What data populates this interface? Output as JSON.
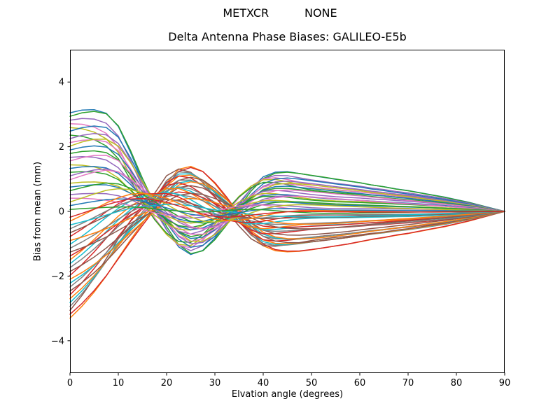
{
  "figure": {
    "suptitle": "METXCR          NONE",
    "background": "#ffffff",
    "text_color": "#000000"
  },
  "chart_data": {
    "type": "line",
    "suptitle": "METXCR          NONE",
    "title": "Delta Antenna Phase Biases: GALILEO-E5b",
    "xlabel": "Elvation angle (degrees)",
    "ylabel": "Bias from mean (mm)",
    "xlim": [
      0,
      90
    ],
    "ylim": [
      -5,
      5
    ],
    "xticks": [
      0,
      10,
      20,
      30,
      40,
      50,
      60,
      70,
      80,
      90
    ],
    "xtick_labels": [
      "0",
      "10",
      "20",
      "30",
      "40",
      "50",
      "60",
      "70",
      "80",
      "90"
    ],
    "yticks": [
      -4,
      -2,
      0,
      2,
      4
    ],
    "ytick_labels": [
      "−4",
      "−2",
      "0",
      "2",
      "4"
    ],
    "grid": false,
    "legend": false,
    "n_series": 54,
    "line_width": 1.5,
    "palette": [
      "#1f77b4",
      "#ff7f0e",
      "#2ca02c",
      "#d62728",
      "#9467bd",
      "#8c564b",
      "#e377c2",
      "#7f7f7f",
      "#bcbd22",
      "#17becf"
    ],
    "x": [
      0,
      2.5,
      5,
      7.5,
      10,
      12.5,
      15,
      17.5,
      20,
      22.5,
      25,
      27.5,
      30,
      32.5,
      35,
      37.5,
      40,
      42.5,
      45,
      47.5,
      50,
      52.5,
      55,
      57.5,
      60,
      62.5,
      65,
      67.5,
      70,
      72.5,
      75,
      77.5,
      80,
      82.5,
      85,
      87.5,
      90
    ],
    "series_model": {
      "description": "Each unlabeled curve: y(x[k]) = mean[k] + a * (a >= 0 ? g_pos[k] : g_neg[k]) + b * g_quad[k], in mm. Curves start spread over [-3.3, +3.05] mm at 0 deg, pinch near 12 deg, oscillate (about +/-1.4 mm near 22-25 deg, +/-1.2 mm near 40 deg) and converge to 0 mm at 90 deg.",
      "mean": [
        0.0,
        0.08,
        0.16,
        0.24,
        0.3,
        0.34,
        0.33,
        0.27,
        0.18,
        0.08,
        -0.02,
        -0.1,
        -0.14,
        -0.13,
        -0.09,
        -0.04,
        0.0,
        0.02,
        0.03,
        0.03,
        0.02,
        0.01,
        0.0,
        0.0,
        0.0,
        0.0,
        0.0,
        0.0,
        0.0,
        0.0,
        0.0,
        0.0,
        0.0,
        0.0,
        0.0,
        0.0,
        0.0
      ],
      "g_pos": [
        1.0,
        0.985,
        0.945,
        0.865,
        0.7,
        0.42,
        0.13,
        -0.1,
        -0.28,
        -0.4,
        -0.42,
        -0.33,
        -0.18,
        -0.02,
        0.14,
        0.27,
        0.36,
        0.385,
        0.375,
        0.35,
        0.33,
        0.315,
        0.3,
        0.285,
        0.27,
        0.25,
        0.235,
        0.215,
        0.2,
        0.18,
        0.16,
        0.14,
        0.115,
        0.09,
        0.06,
        0.03,
        0.0
      ],
      "g_neg": [
        1.0,
        0.9,
        0.78,
        0.64,
        0.48,
        0.32,
        0.16,
        0.0,
        -0.24,
        -0.38,
        -0.42,
        -0.38,
        -0.27,
        -0.12,
        0.05,
        0.22,
        0.33,
        0.37,
        0.375,
        0.365,
        0.345,
        0.325,
        0.305,
        0.29,
        0.27,
        0.25,
        0.235,
        0.215,
        0.2,
        0.18,
        0.16,
        0.14,
        0.115,
        0.09,
        0.06,
        0.03,
        0.0
      ],
      "g_quad": [
        0.0,
        0.12,
        0.25,
        0.38,
        0.47,
        0.51,
        0.5,
        0.42,
        0.28,
        0.1,
        -0.08,
        -0.24,
        -0.33,
        -0.35,
        -0.31,
        -0.2,
        -0.07,
        0.05,
        0.13,
        0.18,
        0.2,
        0.2,
        0.19,
        0.17,
        0.15,
        0.13,
        0.11,
        0.095,
        0.08,
        0.065,
        0.05,
        0.04,
        0.03,
        0.02,
        0.012,
        0.005,
        0.0
      ],
      "series_format": "[a, b]"
    },
    "series": [
      [
        3.05,
        0.41
      ],
      [
        -3.3,
        -0.33
      ],
      [
        2.94,
        0.62
      ],
      [
        -3.18,
        -0.51
      ],
      [
        2.82,
        0.12
      ],
      [
        -3.06,
        0.68
      ],
      [
        2.71,
        -0.45
      ],
      [
        -2.94,
        0.25
      ],
      [
        2.59,
        -0.62
      ],
      [
        -2.82,
        0.05
      ],
      [
        2.48,
        0.55
      ],
      [
        -2.7,
        -0.15
      ],
      [
        2.36,
        -0.68
      ],
      [
        -2.58,
        0.35
      ],
      [
        2.25,
        0.48
      ],
      [
        -2.46,
        -0.55
      ],
      [
        2.13,
        0.18
      ],
      [
        -2.34,
        -0.05
      ],
      [
        2.02,
        0.65
      ],
      [
        -2.22,
        -0.42
      ],
      [
        1.9,
        0.28
      ],
      [
        -2.1,
        -0.65
      ],
      [
        1.79,
        0.08
      ],
      [
        -1.98,
        0.52
      ],
      [
        1.67,
        -0.25
      ],
      [
        -1.86,
        -0.48
      ],
      [
        1.56,
        0.38
      ],
      [
        -1.74,
        0.15
      ],
      [
        1.44,
        -0.58
      ],
      [
        -1.62,
        0.45
      ],
      [
        1.33,
        -0.12
      ],
      [
        -1.5,
        0.58
      ],
      [
        1.21,
        -0.35
      ],
      [
        -1.38,
        -0.02
      ],
      [
        1.1,
        0.32
      ],
      [
        -1.26,
        -0.6
      ],
      [
        0.98,
        0.5
      ],
      [
        -1.14,
        0.02
      ],
      [
        0.87,
        -0.28
      ],
      [
        -1.02,
        0.6
      ],
      [
        0.75,
        -0.18
      ],
      [
        -0.9,
        -0.52
      ],
      [
        0.64,
        0.22
      ],
      [
        -0.78,
        0.66
      ],
      [
        0.52,
        -0.38
      ],
      [
        -0.66,
        0.1
      ],
      [
        0.41,
        -0.66
      ],
      [
        -0.54,
        0.3
      ],
      [
        0.29,
        0.42
      ],
      [
        -0.42,
        -0.22
      ],
      [
        0.18,
        -0.08
      ],
      [
        -0.3,
        0.56
      ],
      [
        0.06,
        -0.44
      ],
      [
        -0.18,
        0.2
      ]
    ]
  }
}
